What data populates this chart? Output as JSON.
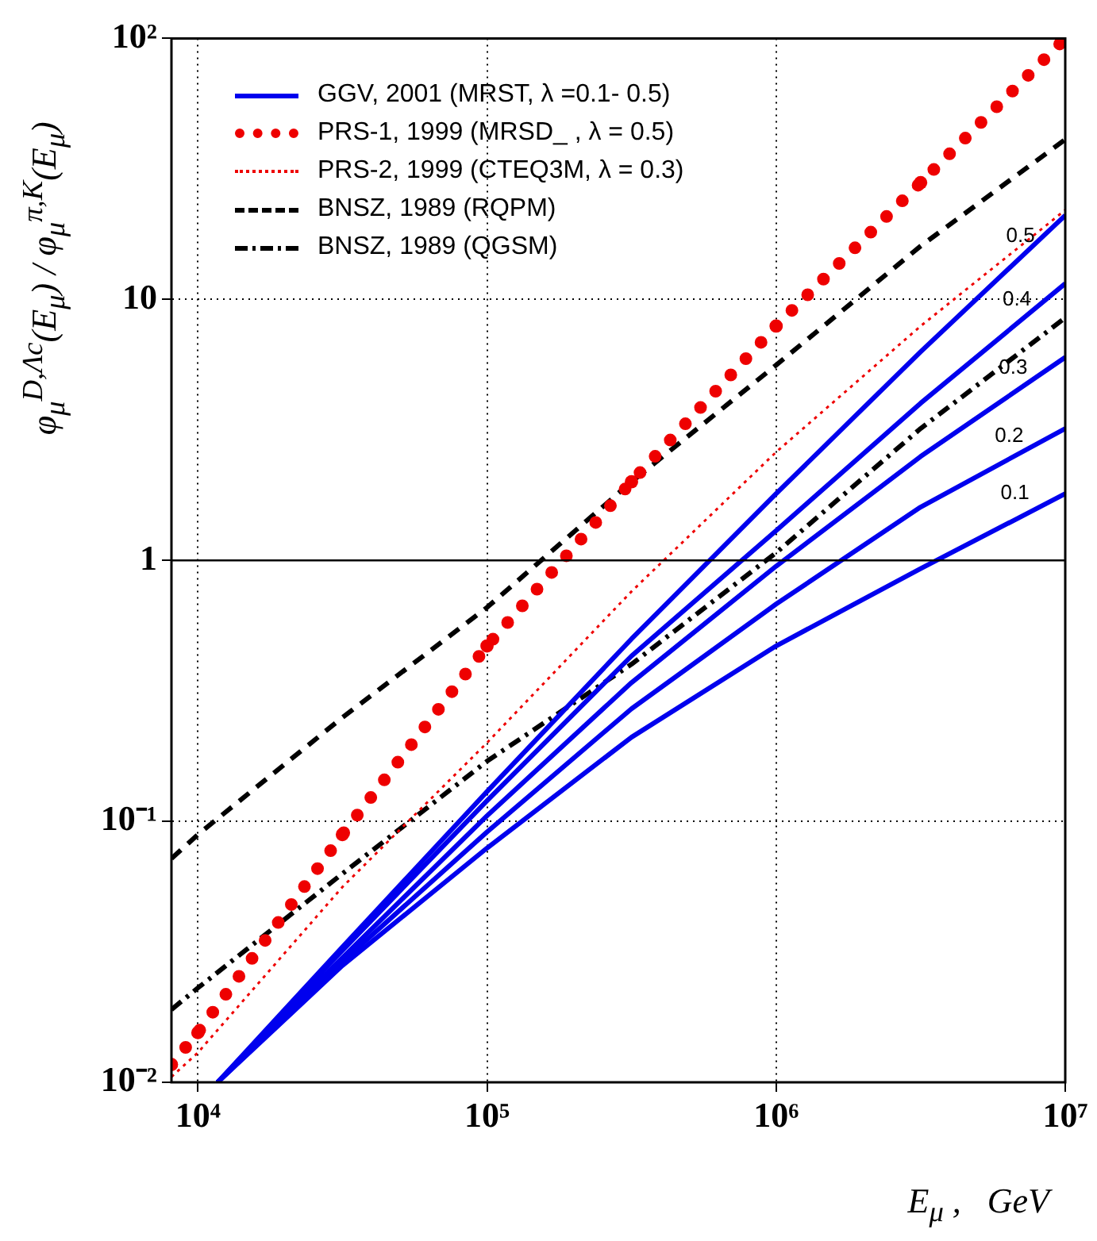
{
  "chart_data": {
    "type": "line",
    "xlabel": "E$_{μ}$ ,   GeV",
    "ylabel": "φ$_{μ}$$^{D,Λc}$(E$_{μ}$) / φ$_{μ}$$^{π,K}$(E$_{μ}$)",
    "log": "xy",
    "grid": true,
    "legend": "top left",
    "xlim": [
      8100,
      10000000
    ],
    "xticks": [
      {
        "value": 10000,
        "label": "10⁴"
      },
      {
        "value": 100000,
        "label": "10⁵"
      },
      {
        "value": 1000000,
        "label": "10⁶"
      },
      {
        "value": 10000000,
        "label": "10⁷"
      }
    ],
    "ylim": [
      0.01,
      100
    ],
    "yticks": [
      {
        "value": 0.01,
        "label": "10⁻²"
      },
      {
        "value": 0.1,
        "label": "10⁻¹"
      },
      1,
      10,
      {
        "value": 100,
        "label": "10²"
      }
    ],
    "x": [
      8100,
      10000,
      31600,
      100000,
      316000,
      1000000,
      3160000,
      10000000
    ],
    "series": [
      {
        "name": "GGV, 2001 (MRST,   λ =0.1- 0.5)",
        "color": "#0000ee",
        "line_style": "solid",
        "x": [
          11700,
          31600,
          100000,
          316000,
          1000000,
          3160000,
          10000000
        ],
        "values": [
          0.01,
          0.033,
          0.13,
          0.5,
          1.8,
          6.3,
          21
        ]
      },
      {
        "color": "#0000ee",
        "line_style": "solid",
        "x": [
          11700,
          31600,
          100000,
          316000,
          1000000,
          3160000,
          10000000
        ],
        "values": [
          0.01,
          0.032,
          0.12,
          0.43,
          1.3,
          4.0,
          11.5
        ]
      },
      {
        "color": "#0000ee",
        "line_style": "solid",
        "x": [
          11700,
          31600,
          100000,
          316000,
          1000000,
          3160000,
          10000000
        ],
        "values": [
          0.01,
          0.03,
          0.105,
          0.34,
          0.95,
          2.5,
          6.0
        ]
      },
      {
        "color": "#0000ee",
        "line_style": "solid",
        "x": [
          11700,
          31600,
          100000,
          316000,
          1000000,
          3160000,
          10000000
        ],
        "values": [
          0.01,
          0.029,
          0.091,
          0.27,
          0.68,
          1.6,
          3.2
        ]
      },
      {
        "color": "#0000ee",
        "line_style": "solid",
        "x": [
          11700,
          31600,
          100000,
          316000,
          1000000,
          3160000,
          10000000
        ],
        "values": [
          0.01,
          0.028,
          0.079,
          0.21,
          0.47,
          0.93,
          1.8
        ]
      },
      {
        "name": "PRS-1, 1999 (MRSD_ ,  λ = 0.5)",
        "color": "#ee0000",
        "line_style": "dotted",
        "marker": "circle",
        "values": [
          0.0117,
          0.0155,
          0.089,
          0.47,
          2.0,
          7.9,
          28,
          100
        ]
      },
      {
        "name": "PRS-2, 1999 (CTEQ3M,   λ = 0.3)",
        "color": "#ee0000",
        "line_style": "dotted",
        "values": [
          0.0105,
          0.013,
          0.056,
          0.2,
          0.76,
          2.6,
          7.9,
          22
        ]
      },
      {
        "name": "BNSZ, 1989 (RQPM)",
        "color": "#000000",
        "line_style": "dashed",
        "values": [
          0.072,
          0.089,
          0.25,
          0.66,
          2.0,
          5.6,
          16,
          41
        ]
      },
      {
        "name": "BNSZ, 1989 (QGSM)",
        "color": "#000000",
        "line_style": "dashdot",
        "values": [
          0.019,
          0.023,
          0.063,
          0.17,
          0.4,
          1.07,
          3.2,
          8.5
        ]
      }
    ],
    "ref_lines": [
      {
        "axis": "y",
        "value": 1,
        "color": "#000000"
      }
    ],
    "annotations": [
      {
        "text": "0.5",
        "x": 7000000,
        "y": 14
      },
      {
        "text": "0.4",
        "x": 6800000,
        "y": 8
      },
      {
        "text": "0.3",
        "x": 6600000,
        "y": 4.4
      },
      {
        "text": "0.2",
        "x": 6400000,
        "y": 2.4
      },
      {
        "text": "0.1",
        "x": 6700000,
        "y": 1.45
      }
    ]
  }
}
